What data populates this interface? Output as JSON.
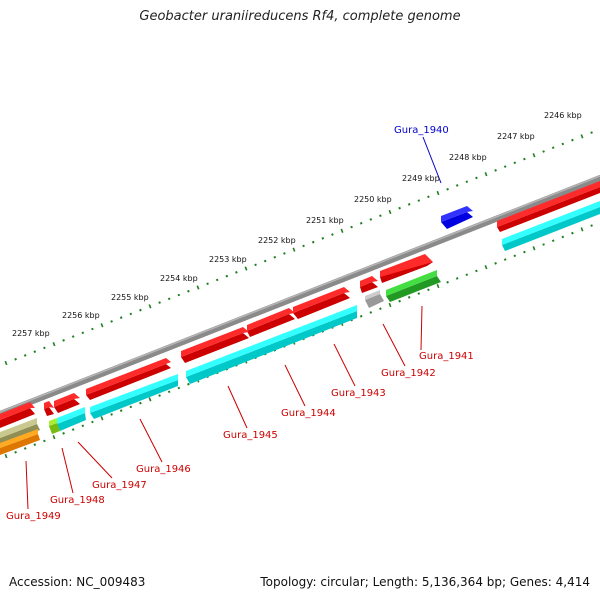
{
  "title": "Geobacter uraniireducens Rf4, complete genome",
  "accession": "Accession: NC_009483",
  "topology": "Topology: circular; Length: 5,136,364 bp; Genes: 4,414",
  "colors": {
    "backbone": "#8a8a8a",
    "ticks": "#1f7f1f",
    "red": "#ff0000",
    "cyan": "#00ffff",
    "blue": "#0000e0",
    "green": "#33cc33",
    "grey": "#bcbcbc",
    "lime": "#99dd22",
    "olive": "#b2b27a",
    "orange": "#ff9900",
    "label_red": "#cc0000",
    "label_blue": "#0000cc"
  },
  "kbp_labels": [
    "2246 kbp",
    "2247 kbp",
    "2248 kbp",
    "2249 kbp",
    "2250 kbp",
    "2251 kbp",
    "2252 kbp",
    "2253 kbp",
    "2254 kbp",
    "2255 kbp",
    "2256 kbp",
    "2257 kbp"
  ],
  "gene_labels": [
    "Gura_1940",
    "Gura_1941",
    "Gura_1942",
    "Gura_1943",
    "Gura_1944",
    "Gura_1945",
    "Gura_1946",
    "Gura_1947",
    "Gura_1948",
    "Gura_1949"
  ]
}
